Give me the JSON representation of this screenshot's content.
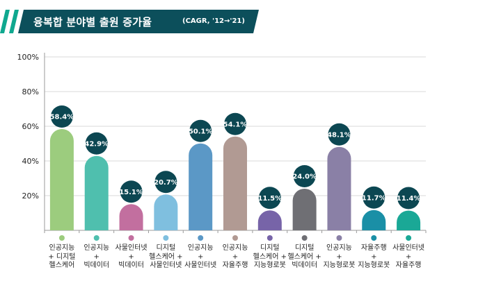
{
  "header": {
    "title": "융복합 분야별 출원 증가율",
    "subtitle": "(CAGR, '12→'21)"
  },
  "colors": {
    "banner_dark": "#0c4f5b",
    "banner_accent": "#0fa88f",
    "label_circle": "#0c4752",
    "grid": "#d8d8d8",
    "axis": "#9a9a9a"
  },
  "chart_data": {
    "type": "bar",
    "title": "융복합 분야별 출원 증가율",
    "subtitle": "(CAGR, '12→'21)",
    "xlabel": "",
    "ylabel": "",
    "ylim": [
      0,
      100
    ],
    "yticks": [
      20,
      40,
      60,
      80,
      100
    ],
    "ytick_labels": [
      "20%",
      "40%",
      "60%",
      "80%",
      "100%"
    ],
    "grid": true,
    "categories": [
      "인공지능\n+ 디지털\n헬스케어",
      "인공지능\n+\n빅데이터",
      "사물인터넷\n+\n빅데이터",
      "디지털\n헬스케어 +\n사물인터넷",
      "인공지능\n+\n사물인터넷",
      "인공지능\n+\n자율주행",
      "디지털\n헬스케어 +\n지능형로봇",
      "디지털\n헬스케어 +\n빅데이터",
      "인공지능\n+\n지능형로봇",
      "자율주행\n+\n지능형로봇",
      "사물인터넷\n+\n자율주행"
    ],
    "values": [
      58.4,
      42.9,
      15.1,
      20.7,
      50.1,
      54.1,
      11.5,
      24.0,
      48.1,
      11.7,
      11.4
    ],
    "value_labels": [
      "58.4%",
      "42.9%",
      "15.1%",
      "20.7%",
      "50.1%",
      "54.1%",
      "11.5%",
      "24.0%",
      "48.1%",
      "11.7%",
      "11.4%"
    ],
    "bar_colors": [
      "#9ccc7e",
      "#4fbfae",
      "#c26f9f",
      "#7fbfdf",
      "#5b98c6",
      "#b19a93",
      "#7764a8",
      "#6f6f74",
      "#8a80a6",
      "#1a8fa6",
      "#1aa896"
    ]
  }
}
